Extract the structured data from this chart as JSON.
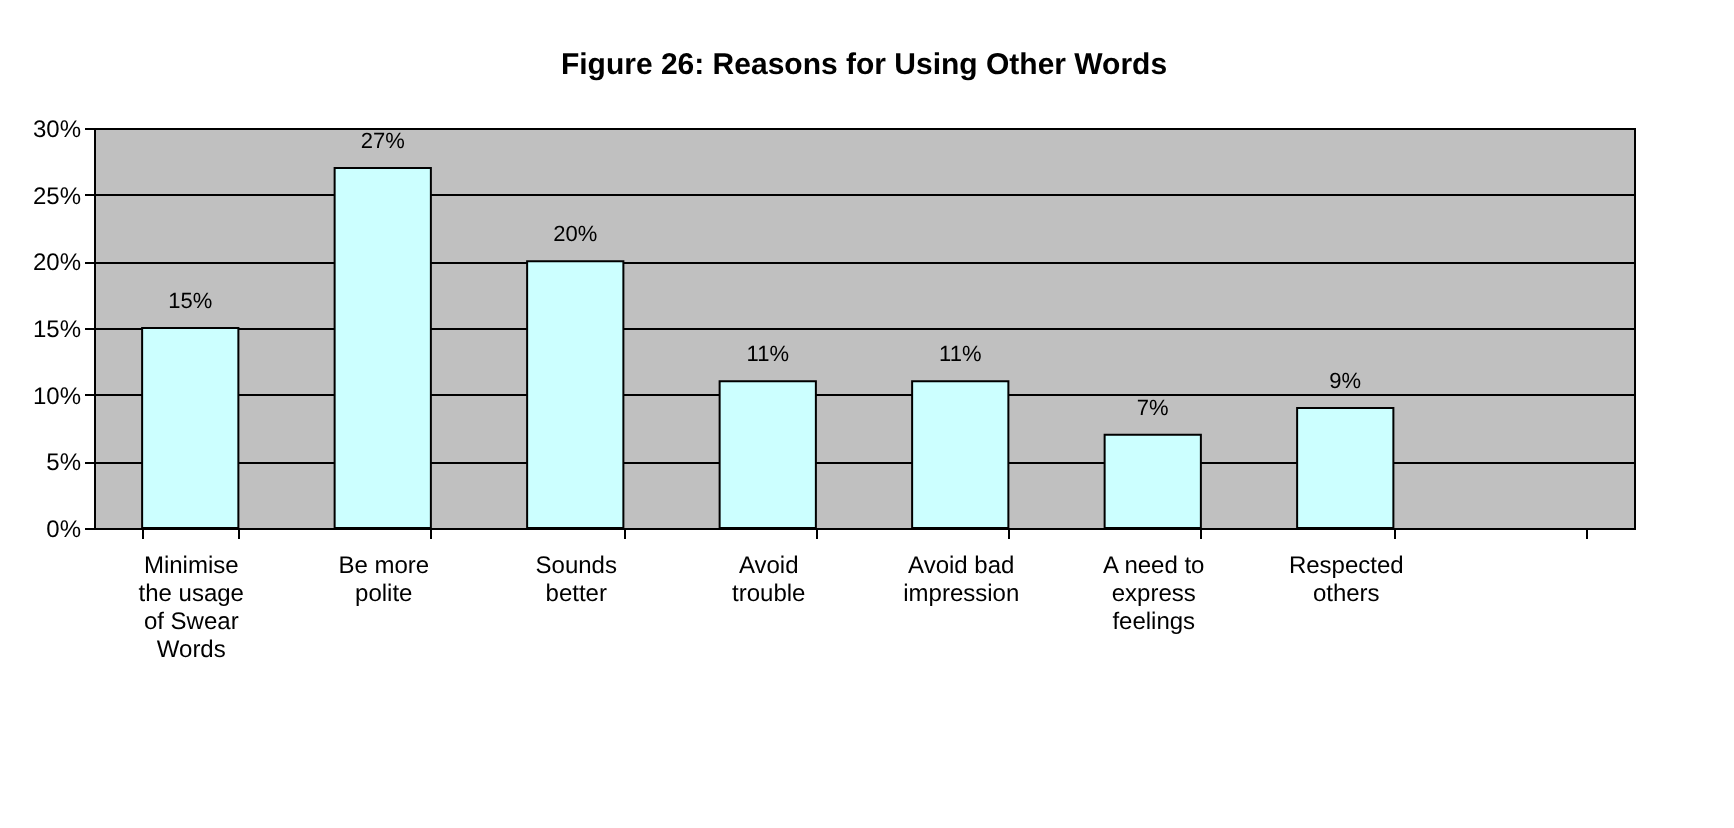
{
  "chart_data": {
    "type": "bar",
    "title": "Figure 26: Reasons for Using Other Words",
    "categories": [
      "Minimise the usage of Swear Words",
      "Be more polite",
      "Sounds better",
      "Avoid trouble",
      "Avoid bad impression",
      "A need to express feelings",
      "Respected others",
      null
    ],
    "values": [
      15,
      27,
      20,
      11,
      11,
      7,
      9,
      null
    ],
    "value_labels": [
      "15%",
      "27%",
      "20%",
      "11%",
      "11%",
      "7%",
      "9%",
      null
    ],
    "color": "#ccffff",
    "ylim": [
      0,
      30
    ],
    "yticks": [
      {
        "value": 0,
        "label": "0%"
      },
      {
        "value": 5,
        "label": "5%"
      },
      {
        "value": 10,
        "label": "10%"
      },
      {
        "value": 15,
        "label": "15%"
      },
      {
        "value": 20,
        "label": "20%"
      },
      {
        "value": 25,
        "label": "25%"
      },
      {
        "value": 30,
        "label": "30%"
      }
    ],
    "grid": "y"
  }
}
